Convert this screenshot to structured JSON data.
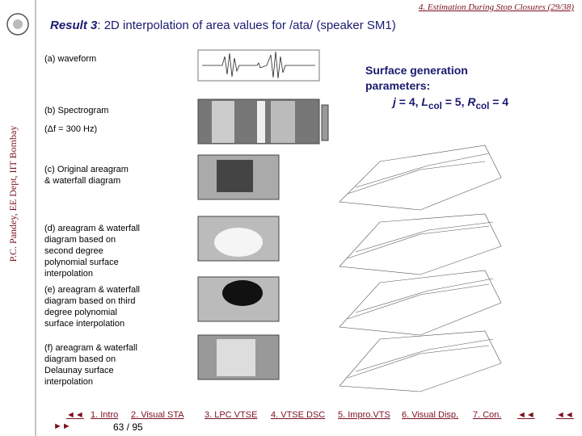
{
  "header": "4. Estimation During Stop Closures (29/38)",
  "side_text": "P.C. Pandey, EE Dept, IIT Bombay",
  "title": {
    "prefix": "Result 3",
    "rest": ": 2D interpolation of area values for /ata/ (speaker SM1)"
  },
  "labels": [
    "(a) waveform",
    "(b) Spectrogram",
    "(Δf = 300 Hz)",
    "(c) Original areagram & waterfall diagram",
    "(d) areagram & waterfall diagram based on second degree polynomial surface interpolation",
    "(e) areagram & waterfall diagram based on third degree polynomial surface interpolation",
    "(f) areagram & waterfall diagram based on Delaunay surface interpolation"
  ],
  "params": {
    "heading": "Surface generation parameters:",
    "parts": [
      "j",
      " = 4, ",
      "L",
      "col",
      " = 5, ",
      "R",
      "col",
      " = 4"
    ]
  },
  "nav": {
    "back": "◄◄",
    "forward": "►►",
    "links": [
      "1. Intro",
      "2. Visual STA",
      "3. LPC VTSE",
      "4. VTSE DSC",
      "5. Impro.VTS",
      "6. Visual Disp.",
      "7. Con."
    ],
    "back2": "◄◄",
    "end": "◄◄"
  },
  "page_number": "63 / 95"
}
